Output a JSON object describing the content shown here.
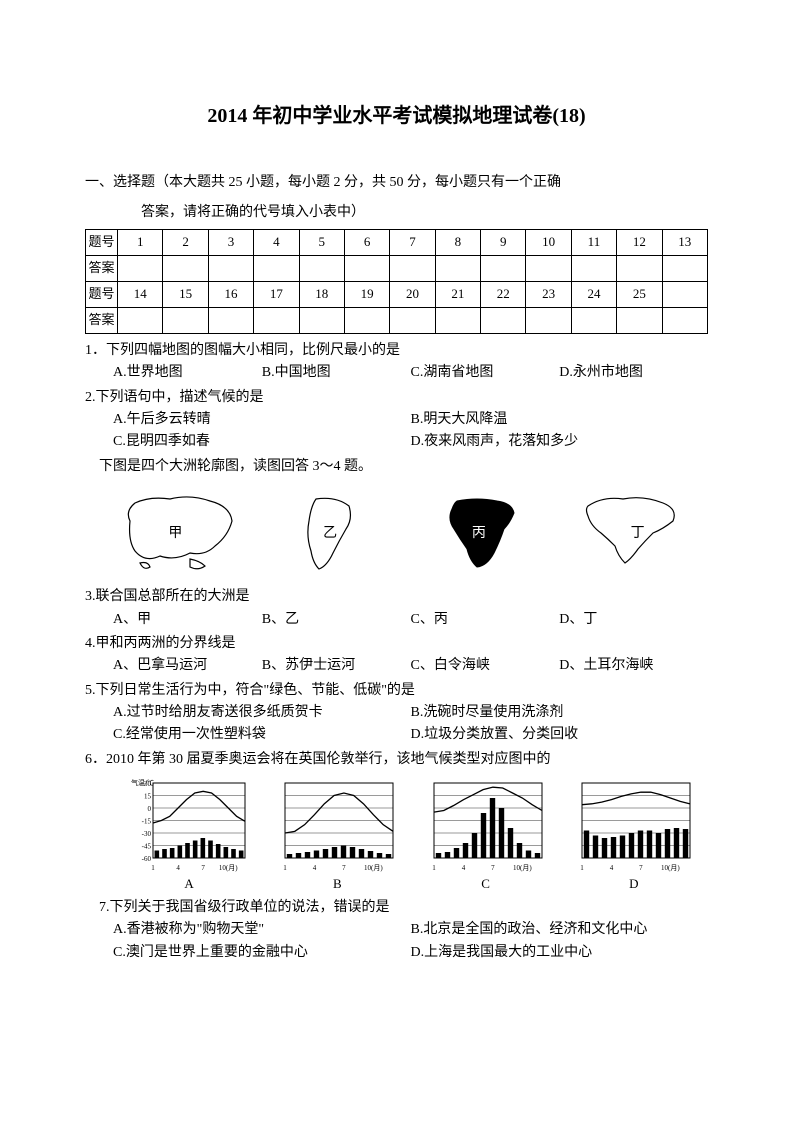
{
  "title": "2014 年初中学业水平考试模拟地理试卷(18)",
  "section1": {
    "heading": "一、选择题（本大题共 25 小题，每小题 2 分，共 50 分，每小题只有一个正确",
    "heading_line2": "答案，请将正确的代号填入小表中）"
  },
  "table": {
    "row1_label": "题号",
    "row1": [
      "1",
      "2",
      "3",
      "4",
      "5",
      "6",
      "7",
      "8",
      "9",
      "10",
      "11",
      "12",
      "13"
    ],
    "row2_label": "答案",
    "row3_label": "题号",
    "row3": [
      "14",
      "15",
      "16",
      "17",
      "18",
      "19",
      "20",
      "21",
      "22",
      "23",
      "24",
      "25",
      ""
    ],
    "row4_label": "答案"
  },
  "q1": {
    "stem": "1．下列四幅地图的图幅大小相同，比例尺最小的是",
    "a": "A.世界地图",
    "b": "B.中国地图",
    "c": "C.湖南省地图",
    "d": "D.永州市地图"
  },
  "q2": {
    "stem": "2.下列语句中，描述气候的是",
    "a": "A.午后多云转晴",
    "b": "B.明天大风降温",
    "c": "C.昆明四季如春",
    "d": "D.夜来风雨声，花落知多少"
  },
  "intro34": "下图是四个大洲轮廓图，读图回答 3～4 题。",
  "continents": {
    "jia": "甲",
    "yi": "乙",
    "bing": "丙",
    "ding": "丁"
  },
  "q3": {
    "stem": "3.联合国总部所在的大洲是",
    "a": "A、甲",
    "b": "B、乙",
    "c": "C、丙",
    "d": "D、丁"
  },
  "q4": {
    "stem": "4.甲和丙两洲的分界线是",
    "a": "A、巴拿马运河",
    "b": "B、苏伊士运河",
    "c": "C、白令海峡",
    "d": "D、土耳尔海峡"
  },
  "q5": {
    "stem": "5.下列日常生活行为中，符合\"绿色、节能、低碳\"的是",
    "a": "A.过节时给朋友寄送很多纸质贺卡",
    "b": "B.洗碗时尽量使用洗涤剂",
    "c": "C.经常使用一次性塑料袋",
    "d": "D.垃圾分类放置、分类回收"
  },
  "q6": {
    "stem": "6．2010 年第 30 届夏季奥运会将在英国伦敦举行，该地气候类型对应图中的"
  },
  "climate": {
    "labels": [
      "A",
      "B",
      "C",
      "D"
    ],
    "axis": {
      "temp_label": "气温/℃",
      "precip_label": "降水量"
    },
    "yticks": [
      "30",
      "15",
      "0",
      "-15",
      "-30",
      "-45",
      "-60"
    ],
    "xticks": [
      "1",
      "4",
      "7",
      "10(月)"
    ],
    "panels": [
      {
        "temp": [
          -18,
          -15,
          -10,
          0,
          10,
          18,
          20,
          18,
          10,
          0,
          -10,
          -16
        ],
        "precip": [
          15,
          18,
          20,
          25,
          30,
          35,
          40,
          35,
          28,
          22,
          18,
          15
        ]
      },
      {
        "temp": [
          -30,
          -28,
          -20,
          -8,
          5,
          15,
          18,
          15,
          5,
          -8,
          -20,
          -28
        ],
        "precip": [
          8,
          10,
          12,
          15,
          18,
          22,
          25,
          22,
          18,
          14,
          10,
          8
        ]
      },
      {
        "temp": [
          -5,
          -3,
          3,
          10,
          16,
          22,
          25,
          24,
          18,
          12,
          4,
          -3
        ],
        "precip": [
          10,
          12,
          20,
          30,
          50,
          90,
          120,
          100,
          60,
          30,
          15,
          10
        ]
      },
      {
        "temp": [
          4,
          5,
          7,
          10,
          14,
          17,
          19,
          19,
          16,
          12,
          8,
          5
        ],
        "precip": [
          55,
          45,
          40,
          42,
          45,
          50,
          55,
          55,
          50,
          58,
          60,
          58
        ]
      }
    ]
  },
  "q7": {
    "stem": "7.下列关于我国省级行政单位的说法，错误的是",
    "a": "A.香港被称为\"购物天堂\"",
    "b": "B.北京是全国的政治、经济和文化中心",
    "c": "C.澳门是世界上重要的金融中心",
    "d": "D.上海是我国最大的工业中心"
  }
}
